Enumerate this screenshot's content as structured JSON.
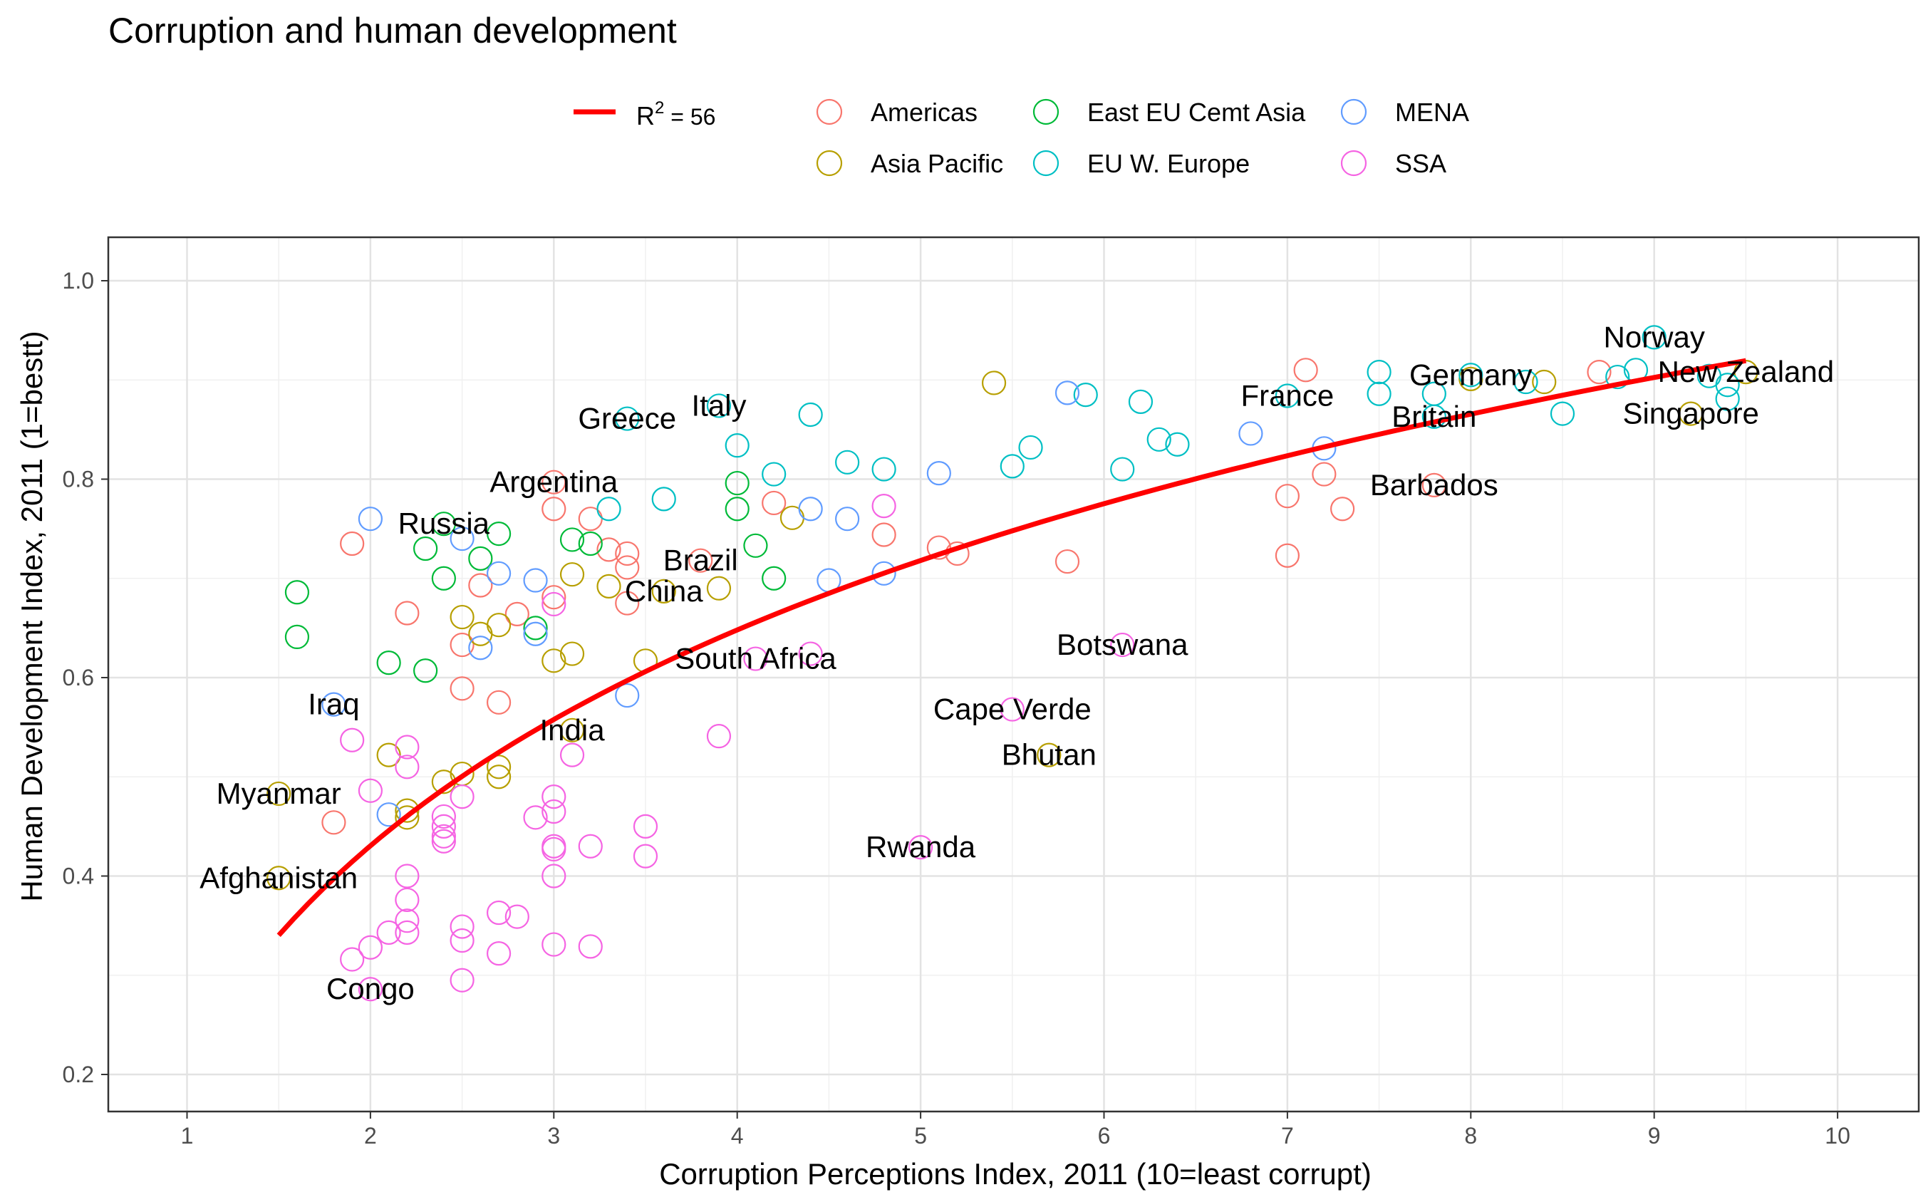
{
  "chart_data": {
    "type": "scatter",
    "title": "Corruption and human development",
    "xlabel": "Corruption Perceptions Index, 2011 (10=least corrupt)",
    "ylabel": "Human Development Index, 2011 (1=bestt)",
    "xlim": [
      0.6,
      10.4
    ],
    "ylim": [
      0.17,
      1.04
    ],
    "x_ticks": [
      1,
      2,
      3,
      4,
      5,
      6,
      7,
      8,
      9,
      10
    ],
    "y_ticks": [
      0.2,
      0.4,
      0.6,
      0.8,
      1.0
    ],
    "y_tick_labels": [
      "0.2",
      "0.4",
      "0.6",
      "0.8",
      "1.0"
    ],
    "grid": true,
    "legend_position": "top",
    "trend_line": {
      "label": "R",
      "label_sup": "2",
      "label_rest": " = 56",
      "color": "#FF0000",
      "x_range": [
        1.5,
        9.5
      ],
      "formula": "y = 0.213 + 0.3138 * ln(x)"
    },
    "series": [
      {
        "name": "Americas",
        "color": "#F8766D",
        "points": [
          [
            1.9,
            0.735
          ],
          [
            1.8,
            0.454
          ],
          [
            2.2,
            0.665
          ],
          [
            2.5,
            0.633
          ],
          [
            2.5,
            0.589
          ],
          [
            2.6,
            0.693
          ],
          [
            2.7,
            0.575
          ],
          [
            2.8,
            0.664
          ],
          [
            3.0,
            0.797
          ],
          [
            3.0,
            0.77
          ],
          [
            3.0,
            0.681
          ],
          [
            3.2,
            0.76
          ],
          [
            3.3,
            0.729
          ],
          [
            3.4,
            0.725
          ],
          [
            3.4,
            0.711
          ],
          [
            3.4,
            0.675
          ],
          [
            3.8,
            0.718
          ],
          [
            4.2,
            0.776
          ],
          [
            4.8,
            0.744
          ],
          [
            5.1,
            0.731
          ],
          [
            5.2,
            0.725
          ],
          [
            5.8,
            0.717
          ],
          [
            7.0,
            0.783
          ],
          [
            7.0,
            0.723
          ],
          [
            7.1,
            0.91
          ],
          [
            7.2,
            0.805
          ],
          [
            7.3,
            0.77
          ],
          [
            7.8,
            0.794
          ],
          [
            8.7,
            0.908
          ]
        ]
      },
      {
        "name": "Asia Pacific",
        "color": "#B79F00",
        "points": [
          [
            1.5,
            0.398
          ],
          [
            1.5,
            0.483
          ],
          [
            2.1,
            0.522
          ],
          [
            2.2,
            0.459
          ],
          [
            2.2,
            0.466
          ],
          [
            2.4,
            0.495
          ],
          [
            2.5,
            0.503
          ],
          [
            2.5,
            0.661
          ],
          [
            2.6,
            0.644
          ],
          [
            2.7,
            0.5
          ],
          [
            2.7,
            0.51
          ],
          [
            2.7,
            0.653
          ],
          [
            3.0,
            0.617
          ],
          [
            3.1,
            0.547
          ],
          [
            3.1,
            0.624
          ],
          [
            3.1,
            0.704
          ],
          [
            3.3,
            0.692
          ],
          [
            3.5,
            0.617
          ],
          [
            3.6,
            0.687
          ],
          [
            3.9,
            0.69
          ],
          [
            4.3,
            0.761
          ],
          [
            5.4,
            0.897
          ],
          [
            5.7,
            0.522
          ],
          [
            8.0,
            0.901
          ],
          [
            8.4,
            0.898
          ],
          [
            9.2,
            0.866
          ],
          [
            9.5,
            0.908
          ]
        ]
      },
      {
        "name": "East EU Cemt Asia",
        "color": "#00BA38",
        "points": [
          [
            1.6,
            0.686
          ],
          [
            1.6,
            0.641
          ],
          [
            2.1,
            0.615
          ],
          [
            2.3,
            0.607
          ],
          [
            2.3,
            0.73
          ],
          [
            2.4,
            0.7
          ],
          [
            2.4,
            0.755
          ],
          [
            2.6,
            0.72
          ],
          [
            2.7,
            0.745
          ],
          [
            2.9,
            0.65
          ],
          [
            3.1,
            0.739
          ],
          [
            3.2,
            0.735
          ],
          [
            4.0,
            0.77
          ],
          [
            4.0,
            0.796
          ],
          [
            4.1,
            0.733
          ],
          [
            4.2,
            0.7
          ]
        ]
      },
      {
        "name": "EU W. Europe",
        "color": "#00BFC4",
        "points": [
          [
            3.3,
            0.77
          ],
          [
            3.4,
            0.861
          ],
          [
            3.6,
            0.78
          ],
          [
            3.9,
            0.874
          ],
          [
            4.0,
            0.834
          ],
          [
            4.2,
            0.805
          ],
          [
            4.4,
            0.865
          ],
          [
            4.6,
            0.817
          ],
          [
            4.8,
            0.81
          ],
          [
            5.5,
            0.813
          ],
          [
            5.6,
            0.832
          ],
          [
            5.9,
            0.885
          ],
          [
            6.1,
            0.81
          ],
          [
            6.2,
            0.878
          ],
          [
            6.3,
            0.84
          ],
          [
            6.4,
            0.835
          ],
          [
            7.0,
            0.884
          ],
          [
            7.5,
            0.908
          ],
          [
            7.5,
            0.886
          ],
          [
            7.8,
            0.886
          ],
          [
            7.8,
            0.863
          ],
          [
            8.0,
            0.905
          ],
          [
            8.3,
            0.898
          ],
          [
            8.5,
            0.866
          ],
          [
            8.8,
            0.903
          ],
          [
            8.9,
            0.91
          ],
          [
            9.0,
            0.943
          ],
          [
            9.3,
            0.904
          ],
          [
            9.4,
            0.881
          ],
          [
            9.4,
            0.895
          ]
        ]
      },
      {
        "name": "MENA",
        "color": "#619CFF",
        "points": [
          [
            1.8,
            0.573
          ],
          [
            2.0,
            0.76
          ],
          [
            2.1,
            0.462
          ],
          [
            2.5,
            0.74
          ],
          [
            2.6,
            0.63
          ],
          [
            2.7,
            0.705
          ],
          [
            2.9,
            0.698
          ],
          [
            2.9,
            0.644
          ],
          [
            3.4,
            0.582
          ],
          [
            4.4,
            0.77
          ],
          [
            4.5,
            0.698
          ],
          [
            4.6,
            0.76
          ],
          [
            4.8,
            0.705
          ],
          [
            5.1,
            0.806
          ],
          [
            5.8,
            0.887
          ],
          [
            6.8,
            0.846
          ],
          [
            7.2,
            0.831
          ]
        ]
      },
      {
        "name": "SSA",
        "color": "#F564E3",
        "points": [
          [
            1.9,
            0.316
          ],
          [
            1.9,
            0.537
          ],
          [
            2.0,
            0.286
          ],
          [
            2.0,
            0.486
          ],
          [
            2.0,
            0.328
          ],
          [
            2.1,
            0.343
          ],
          [
            2.2,
            0.4
          ],
          [
            2.2,
            0.376
          ],
          [
            2.2,
            0.355
          ],
          [
            2.2,
            0.343
          ],
          [
            2.2,
            0.51
          ],
          [
            2.2,
            0.53
          ],
          [
            2.4,
            0.435
          ],
          [
            2.4,
            0.44
          ],
          [
            2.4,
            0.45
          ],
          [
            2.4,
            0.46
          ],
          [
            2.5,
            0.295
          ],
          [
            2.5,
            0.335
          ],
          [
            2.5,
            0.349
          ],
          [
            2.5,
            0.48
          ],
          [
            2.7,
            0.322
          ],
          [
            2.7,
            0.363
          ],
          [
            2.8,
            0.359
          ],
          [
            2.9,
            0.459
          ],
          [
            3.0,
            0.4
          ],
          [
            3.0,
            0.427
          ],
          [
            3.0,
            0.43
          ],
          [
            3.0,
            0.465
          ],
          [
            3.0,
            0.48
          ],
          [
            3.0,
            0.331
          ],
          [
            3.0,
            0.674
          ],
          [
            3.1,
            0.522
          ],
          [
            3.2,
            0.329
          ],
          [
            3.2,
            0.43
          ],
          [
            3.5,
            0.45
          ],
          [
            3.5,
            0.42
          ],
          [
            3.9,
            0.541
          ],
          [
            4.1,
            0.619
          ],
          [
            4.4,
            0.624
          ],
          [
            4.8,
            0.773
          ],
          [
            5.0,
            0.429
          ],
          [
            5.5,
            0.568
          ],
          [
            6.1,
            0.633
          ]
        ]
      }
    ],
    "labels": [
      {
        "text": "Norway",
        "x": 9.0,
        "y": 0.943
      },
      {
        "text": "New Zealand",
        "x": 9.5,
        "y": 0.908
      },
      {
        "text": "Germany",
        "x": 8.0,
        "y": 0.905
      },
      {
        "text": "Singapore",
        "x": 9.2,
        "y": 0.866
      },
      {
        "text": "France",
        "x": 7.0,
        "y": 0.884
      },
      {
        "text": "Britain",
        "x": 7.8,
        "y": 0.863
      },
      {
        "text": "Barbados",
        "x": 7.8,
        "y": 0.794
      },
      {
        "text": "Italy",
        "x": 3.9,
        "y": 0.874
      },
      {
        "text": "Greece",
        "x": 3.4,
        "y": 0.861
      },
      {
        "text": "Argentina",
        "x": 3.0,
        "y": 0.797
      },
      {
        "text": "Russia",
        "x": 2.4,
        "y": 0.755
      },
      {
        "text": "Brazil",
        "x": 3.8,
        "y": 0.718
      },
      {
        "text": "China",
        "x": 3.6,
        "y": 0.687
      },
      {
        "text": "South Africa",
        "x": 4.1,
        "y": 0.619
      },
      {
        "text": "Botswana",
        "x": 6.1,
        "y": 0.633
      },
      {
        "text": "Cape Verde",
        "x": 5.5,
        "y": 0.568
      },
      {
        "text": "Bhutan",
        "x": 5.7,
        "y": 0.522
      },
      {
        "text": "Iraq",
        "x": 1.8,
        "y": 0.573
      },
      {
        "text": "India",
        "x": 3.1,
        "y": 0.547
      },
      {
        "text": "Myanmar",
        "x": 1.5,
        "y": 0.483
      },
      {
        "text": "Rwanda",
        "x": 5.0,
        "y": 0.429
      },
      {
        "text": "Afghanistan",
        "x": 1.5,
        "y": 0.398
      },
      {
        "text": "Congo",
        "x": 2.0,
        "y": 0.286
      }
    ]
  }
}
